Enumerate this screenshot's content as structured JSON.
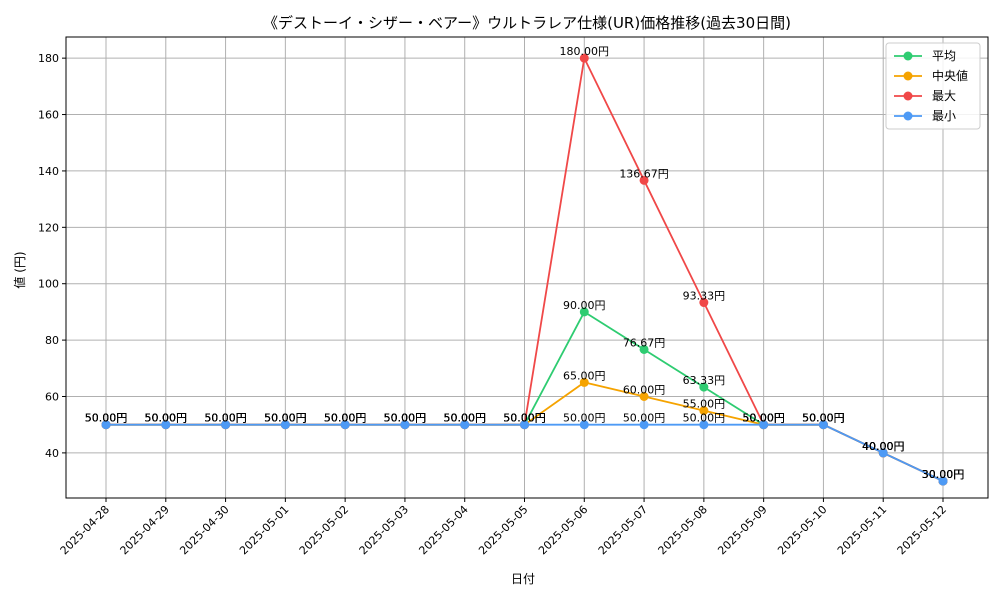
{
  "chart_data": {
    "type": "line",
    "title": "《デストーイ・シザー・ベアー》ウルトラレア仕様(UR)価格推移(過去30日間)",
    "xlabel": "日付",
    "ylabel": "値 (円)",
    "categories": [
      "2025-04-28",
      "2025-04-29",
      "2025-04-30",
      "2025-05-01",
      "2025-05-02",
      "2025-05-03",
      "2025-05-04",
      "2025-05-05",
      "2025-05-06",
      "2025-05-07",
      "2025-05-08",
      "2025-05-09",
      "2025-05-10",
      "2025-05-11",
      "2025-05-12"
    ],
    "yticks": [
      40,
      60,
      80,
      100,
      120,
      140,
      160,
      180
    ],
    "ylim": [
      24,
      187.5
    ],
    "grid": true,
    "legend_position": "top-right",
    "label_suffix": "円",
    "series": [
      {
        "name": "平均",
        "color": "#2ecc71",
        "values": [
          50,
          50,
          50,
          50,
          50,
          50,
          50,
          50,
          90,
          76.67,
          63.33,
          50,
          50,
          40,
          30
        ]
      },
      {
        "name": "中央値",
        "color": "#f5a300",
        "values": [
          50,
          50,
          50,
          50,
          50,
          50,
          50,
          50,
          65,
          60,
          55,
          50,
          50,
          40,
          30
        ]
      },
      {
        "name": "最大",
        "color": "#f04848",
        "values": [
          50,
          50,
          50,
          50,
          50,
          50,
          50,
          50,
          180,
          136.67,
          93.33,
          50,
          50,
          40,
          30
        ]
      },
      {
        "name": "最小",
        "color": "#4d9af5",
        "values": [
          50,
          50,
          50,
          50,
          50,
          50,
          50,
          50,
          50,
          50,
          50,
          50,
          50,
          40,
          30
        ]
      }
    ]
  }
}
